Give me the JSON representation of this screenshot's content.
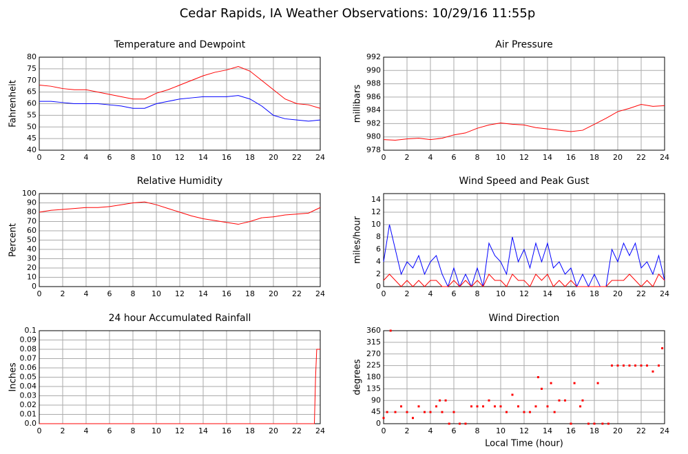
{
  "title": "Cedar Rapids, IA Weather Observations: 10/29/16 11:55p",
  "chart_data": [
    {
      "type": "line",
      "title": "Temperature and Dewpoint",
      "ylabel": "Fahrenheit",
      "x": [
        0,
        1,
        2,
        3,
        4,
        5,
        6,
        7,
        8,
        9,
        10,
        11,
        12,
        13,
        14,
        15,
        16,
        17,
        18,
        19,
        20,
        21,
        22,
        23,
        24
      ],
      "series": [
        {
          "color": "#ff0000",
          "values": [
            68,
            67.5,
            66.5,
            66,
            66,
            65,
            64,
            63,
            62,
            62,
            64.5,
            66,
            68,
            70,
            72,
            73.5,
            74.5,
            76,
            74,
            70,
            66,
            62,
            60,
            59.5,
            58
          ]
        },
        {
          "color": "#0000ff",
          "values": [
            61,
            61,
            60.5,
            60,
            60,
            60,
            59.5,
            59,
            58,
            58,
            60,
            61,
            62,
            62.5,
            63,
            63,
            63,
            63.5,
            62,
            59,
            55,
            53.5,
            53,
            52.5,
            53
          ]
        }
      ],
      "xlim": [
        0,
        24
      ],
      "xticks": [
        0,
        2,
        4,
        6,
        8,
        10,
        12,
        14,
        16,
        18,
        20,
        22,
        24
      ],
      "ylim": [
        40,
        80
      ],
      "yticks": [
        40,
        45,
        50,
        55,
        60,
        65,
        70,
        75,
        80
      ],
      "grid": true
    },
    {
      "type": "line",
      "title": "Air Pressure",
      "ylabel": "millibars",
      "x": [
        0,
        1,
        2,
        3,
        4,
        5,
        6,
        7,
        8,
        9,
        10,
        11,
        12,
        13,
        14,
        15,
        16,
        17,
        18,
        19,
        20,
        21,
        22,
        23,
        24
      ],
      "series": [
        {
          "color": "#ff0000",
          "values": [
            979.6,
            979.5,
            979.7,
            979.8,
            979.6,
            979.8,
            980.3,
            980.6,
            981.3,
            981.8,
            982.1,
            981.9,
            981.8,
            981.4,
            981.2,
            981.0,
            980.8,
            981.0,
            981.9,
            982.8,
            983.8,
            984.3,
            984.9,
            984.6,
            984.7
          ]
        }
      ],
      "xlim": [
        0,
        24
      ],
      "xticks": [
        0,
        2,
        4,
        6,
        8,
        10,
        12,
        14,
        16,
        18,
        20,
        22,
        24
      ],
      "ylim": [
        978,
        992
      ],
      "yticks": [
        978,
        980,
        982,
        984,
        986,
        988,
        990,
        992
      ],
      "grid": true
    },
    {
      "type": "line",
      "title": "Relative Humidity",
      "ylabel": "Percent",
      "x": [
        0,
        1,
        2,
        3,
        4,
        5,
        6,
        7,
        8,
        9,
        10,
        11,
        12,
        13,
        14,
        15,
        16,
        17,
        18,
        19,
        20,
        21,
        22,
        23,
        24
      ],
      "series": [
        {
          "color": "#ff0000",
          "values": [
            80,
            82,
            83,
            84,
            85,
            85,
            86,
            88,
            90,
            91,
            88,
            84,
            80,
            76,
            73,
            71,
            69,
            67,
            70,
            74,
            75,
            77,
            78,
            79,
            85
          ]
        }
      ],
      "xlim": [
        0,
        24
      ],
      "xticks": [
        0,
        2,
        4,
        6,
        8,
        10,
        12,
        14,
        16,
        18,
        20,
        22,
        24
      ],
      "ylim": [
        0,
        100
      ],
      "yticks": [
        0,
        10,
        20,
        30,
        40,
        50,
        60,
        70,
        80,
        90,
        100
      ],
      "grid": true
    },
    {
      "type": "line",
      "title": "Wind Speed and Peak Gust",
      "ylabel": "miles/hour",
      "x": [
        0,
        0.5,
        1,
        1.5,
        2,
        2.5,
        3,
        3.5,
        4,
        4.5,
        5,
        5.5,
        6,
        6.5,
        7,
        7.5,
        8,
        8.5,
        9,
        9.5,
        10,
        10.5,
        11,
        11.5,
        12,
        12.5,
        13,
        13.5,
        14,
        14.5,
        15,
        15.5,
        16,
        16.5,
        17,
        17.5,
        18,
        18.5,
        19,
        19.5,
        20,
        20.5,
        21,
        21.5,
        22,
        22.5,
        23,
        23.5,
        24
      ],
      "series": [
        {
          "color": "#0000ff",
          "values": [
            4,
            10,
            6,
            2,
            4,
            3,
            5,
            2,
            4,
            5,
            2,
            0,
            3,
            0,
            2,
            0,
            3,
            0,
            7,
            5,
            4,
            2,
            8,
            4,
            6,
            3,
            7,
            4,
            7,
            3,
            4,
            2,
            3,
            0,
            2,
            0,
            2,
            0,
            0,
            6,
            4,
            7,
            5,
            7,
            3,
            4,
            2,
            5,
            1
          ]
        },
        {
          "color": "#ff0000",
          "values": [
            1,
            2,
            1,
            0,
            1,
            0,
            1,
            0,
            1,
            1,
            0,
            0,
            1,
            0,
            1,
            0,
            1,
            0,
            2,
            1,
            1,
            0,
            2,
            1,
            1,
            0,
            2,
            1,
            2,
            0,
            1,
            0,
            1,
            0,
            0,
            0,
            0,
            0,
            0,
            1,
            1,
            1,
            2,
            1,
            0,
            1,
            0,
            2,
            1
          ]
        }
      ],
      "xlim": [
        0,
        24
      ],
      "xticks": [
        0,
        2,
        4,
        6,
        8,
        10,
        12,
        14,
        16,
        18,
        20,
        22,
        24
      ],
      "ylim": [
        0,
        15
      ],
      "yticks": [
        0,
        2,
        4,
        6,
        8,
        10,
        12,
        14
      ],
      "grid": true
    },
    {
      "type": "line",
      "title": "24 hour Accumulated Rainfall",
      "ylabel": "Inches",
      "x": [
        0,
        23.5,
        23.6,
        23.7,
        24
      ],
      "series": [
        {
          "color": "#ff0000",
          "values": [
            0,
            0,
            0.05,
            0.08,
            0.08
          ]
        }
      ],
      "xlim": [
        0,
        24
      ],
      "xticks": [
        0,
        2,
        4,
        6,
        8,
        10,
        12,
        14,
        16,
        18,
        20,
        22,
        24
      ],
      "ylim": [
        0,
        0.1
      ],
      "yticks": [
        {
          "value": 0,
          "label": "0.0"
        },
        0.01,
        0.02,
        0.03,
        0.04,
        0.05,
        0.06,
        0.07,
        0.08,
        0.09,
        0.1
      ],
      "grid": true
    },
    {
      "type": "scatter",
      "title": "Wind Direction",
      "ylabel": "degrees",
      "xlabel": "Local Time (hour)",
      "x": [
        0,
        0.3,
        0.6,
        1,
        1.5,
        2,
        2.5,
        3,
        3.5,
        4,
        4.5,
        4.8,
        5,
        5.3,
        5.6,
        6,
        6.5,
        7,
        7.5,
        8,
        8.5,
        9,
        9.5,
        10,
        10.5,
        11,
        11.5,
        12,
        12.5,
        13,
        13.2,
        13.5,
        14,
        14.3,
        14.6,
        15,
        15.5,
        16,
        16.3,
        16.8,
        17,
        17.5,
        18,
        18.3,
        18.7,
        19.2,
        19.5,
        20,
        20.5,
        21,
        21.5,
        22,
        22.5,
        23,
        23.5,
        23.8
      ],
      "series": [
        {
          "color": "#ff0000",
          "values": [
            22,
            45,
            360,
            45,
            67,
            45,
            22,
            67,
            45,
            45,
            67,
            90,
            45,
            90,
            0,
            45,
            0,
            0,
            67,
            67,
            67,
            90,
            67,
            67,
            45,
            112,
            67,
            45,
            45,
            67,
            180,
            135,
            67,
            157,
            45,
            90,
            90,
            0,
            157,
            67,
            90,
            0,
            0,
            157,
            0,
            0,
            225,
            225,
            225,
            225,
            225,
            225,
            225,
            202,
            225,
            292
          ]
        }
      ],
      "xlim": [
        0,
        24
      ],
      "xticks": [
        0,
        2,
        4,
        6,
        8,
        10,
        12,
        14,
        16,
        18,
        20,
        22,
        24
      ],
      "ylim": [
        0,
        360
      ],
      "yticks": [
        0,
        45,
        90,
        135,
        180,
        225,
        270,
        315,
        360
      ],
      "grid": true
    }
  ]
}
